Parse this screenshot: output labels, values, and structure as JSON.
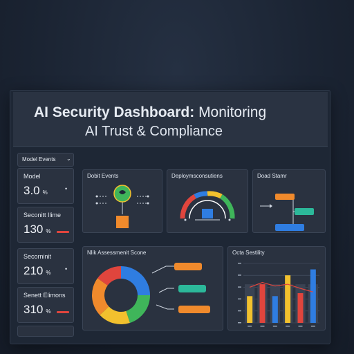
{
  "header": {
    "title_bold": "AI Security Dashboard:",
    "title_rest": " Monitoring",
    "subtitle": "AI Trust & Compliance"
  },
  "sidebar": {
    "tab_label": "Model Events",
    "tab_chevron": "⌄",
    "metrics": [
      {
        "label": "Model",
        "value": "3.0",
        "unit": "%",
        "arrow": "•"
      },
      {
        "label": "Seconitt Ilime",
        "value": "130",
        "unit": "%"
      },
      {
        "label": "Secorninit",
        "value": "210",
        "unit": "%",
        "arrow": "•"
      },
      {
        "label": "Senett Elimons",
        "value": "310",
        "unit": "%"
      }
    ]
  },
  "panels": {
    "events": {
      "title": "Dobit Events"
    },
    "deployment": {
      "title": "Deploymsconsutiens"
    },
    "data_stream": {
      "title": "Doad Stamr"
    },
    "risk": {
      "title": "Nlik Assessmenit Scone"
    },
    "sensitivity": {
      "title": "Octa Sestility"
    }
  },
  "colors": {
    "accent_green": "#3fb55a",
    "accent_orange": "#f08a2c",
    "accent_yellow": "#f2c12e",
    "accent_red": "#e0453d",
    "accent_blue": "#2f7de1",
    "accent_teal": "#2cb89a"
  },
  "icons": {
    "events_center": "shield-icon",
    "events_base": "server-icon"
  },
  "gauge": {
    "level": 0.72
  },
  "donut": {
    "segments": [
      {
        "value": 25,
        "color": "#2f7de1"
      },
      {
        "value": 20,
        "color": "#3fb55a"
      },
      {
        "value": 18,
        "color": "#f2c12e"
      },
      {
        "value": 22,
        "color": "#f08a2c"
      },
      {
        "value": 15,
        "color": "#e0453d"
      }
    ]
  },
  "risk_pills": [
    {
      "color": "#f08a2c"
    },
    {
      "color": "#2cb89a"
    },
    {
      "color": "#f08a2c"
    }
  ],
  "data_pills": [
    {
      "color": "#f08a2c"
    },
    {
      "color": "#2cb89a"
    },
    {
      "color": "#2f7de1"
    }
  ],
  "chart_data": {
    "type": "bar",
    "categories": [
      "",
      "",
      "",
      "",
      "",
      ""
    ],
    "series": [
      {
        "values": [
          4.5,
          8.5,
          7.5,
          8,
          4.2,
          2.5
        ]
      },
      {
        "values": [
          4.2,
          6.5,
          6.2,
          6.5,
          5,
          4.5
        ]
      },
      {
        "values": [
          3,
          3.8,
          4.5,
          3,
          3.5,
          9
        ]
      }
    ],
    "series_colors": [
      "#f2c12e",
      "#e0453d",
      "#2f7de1"
    ],
    "trend": [
      6,
      6.8,
      6.2,
      6.5,
      5.8,
      5.2
    ],
    "ylim": [
      0,
      10
    ],
    "grid": true
  }
}
